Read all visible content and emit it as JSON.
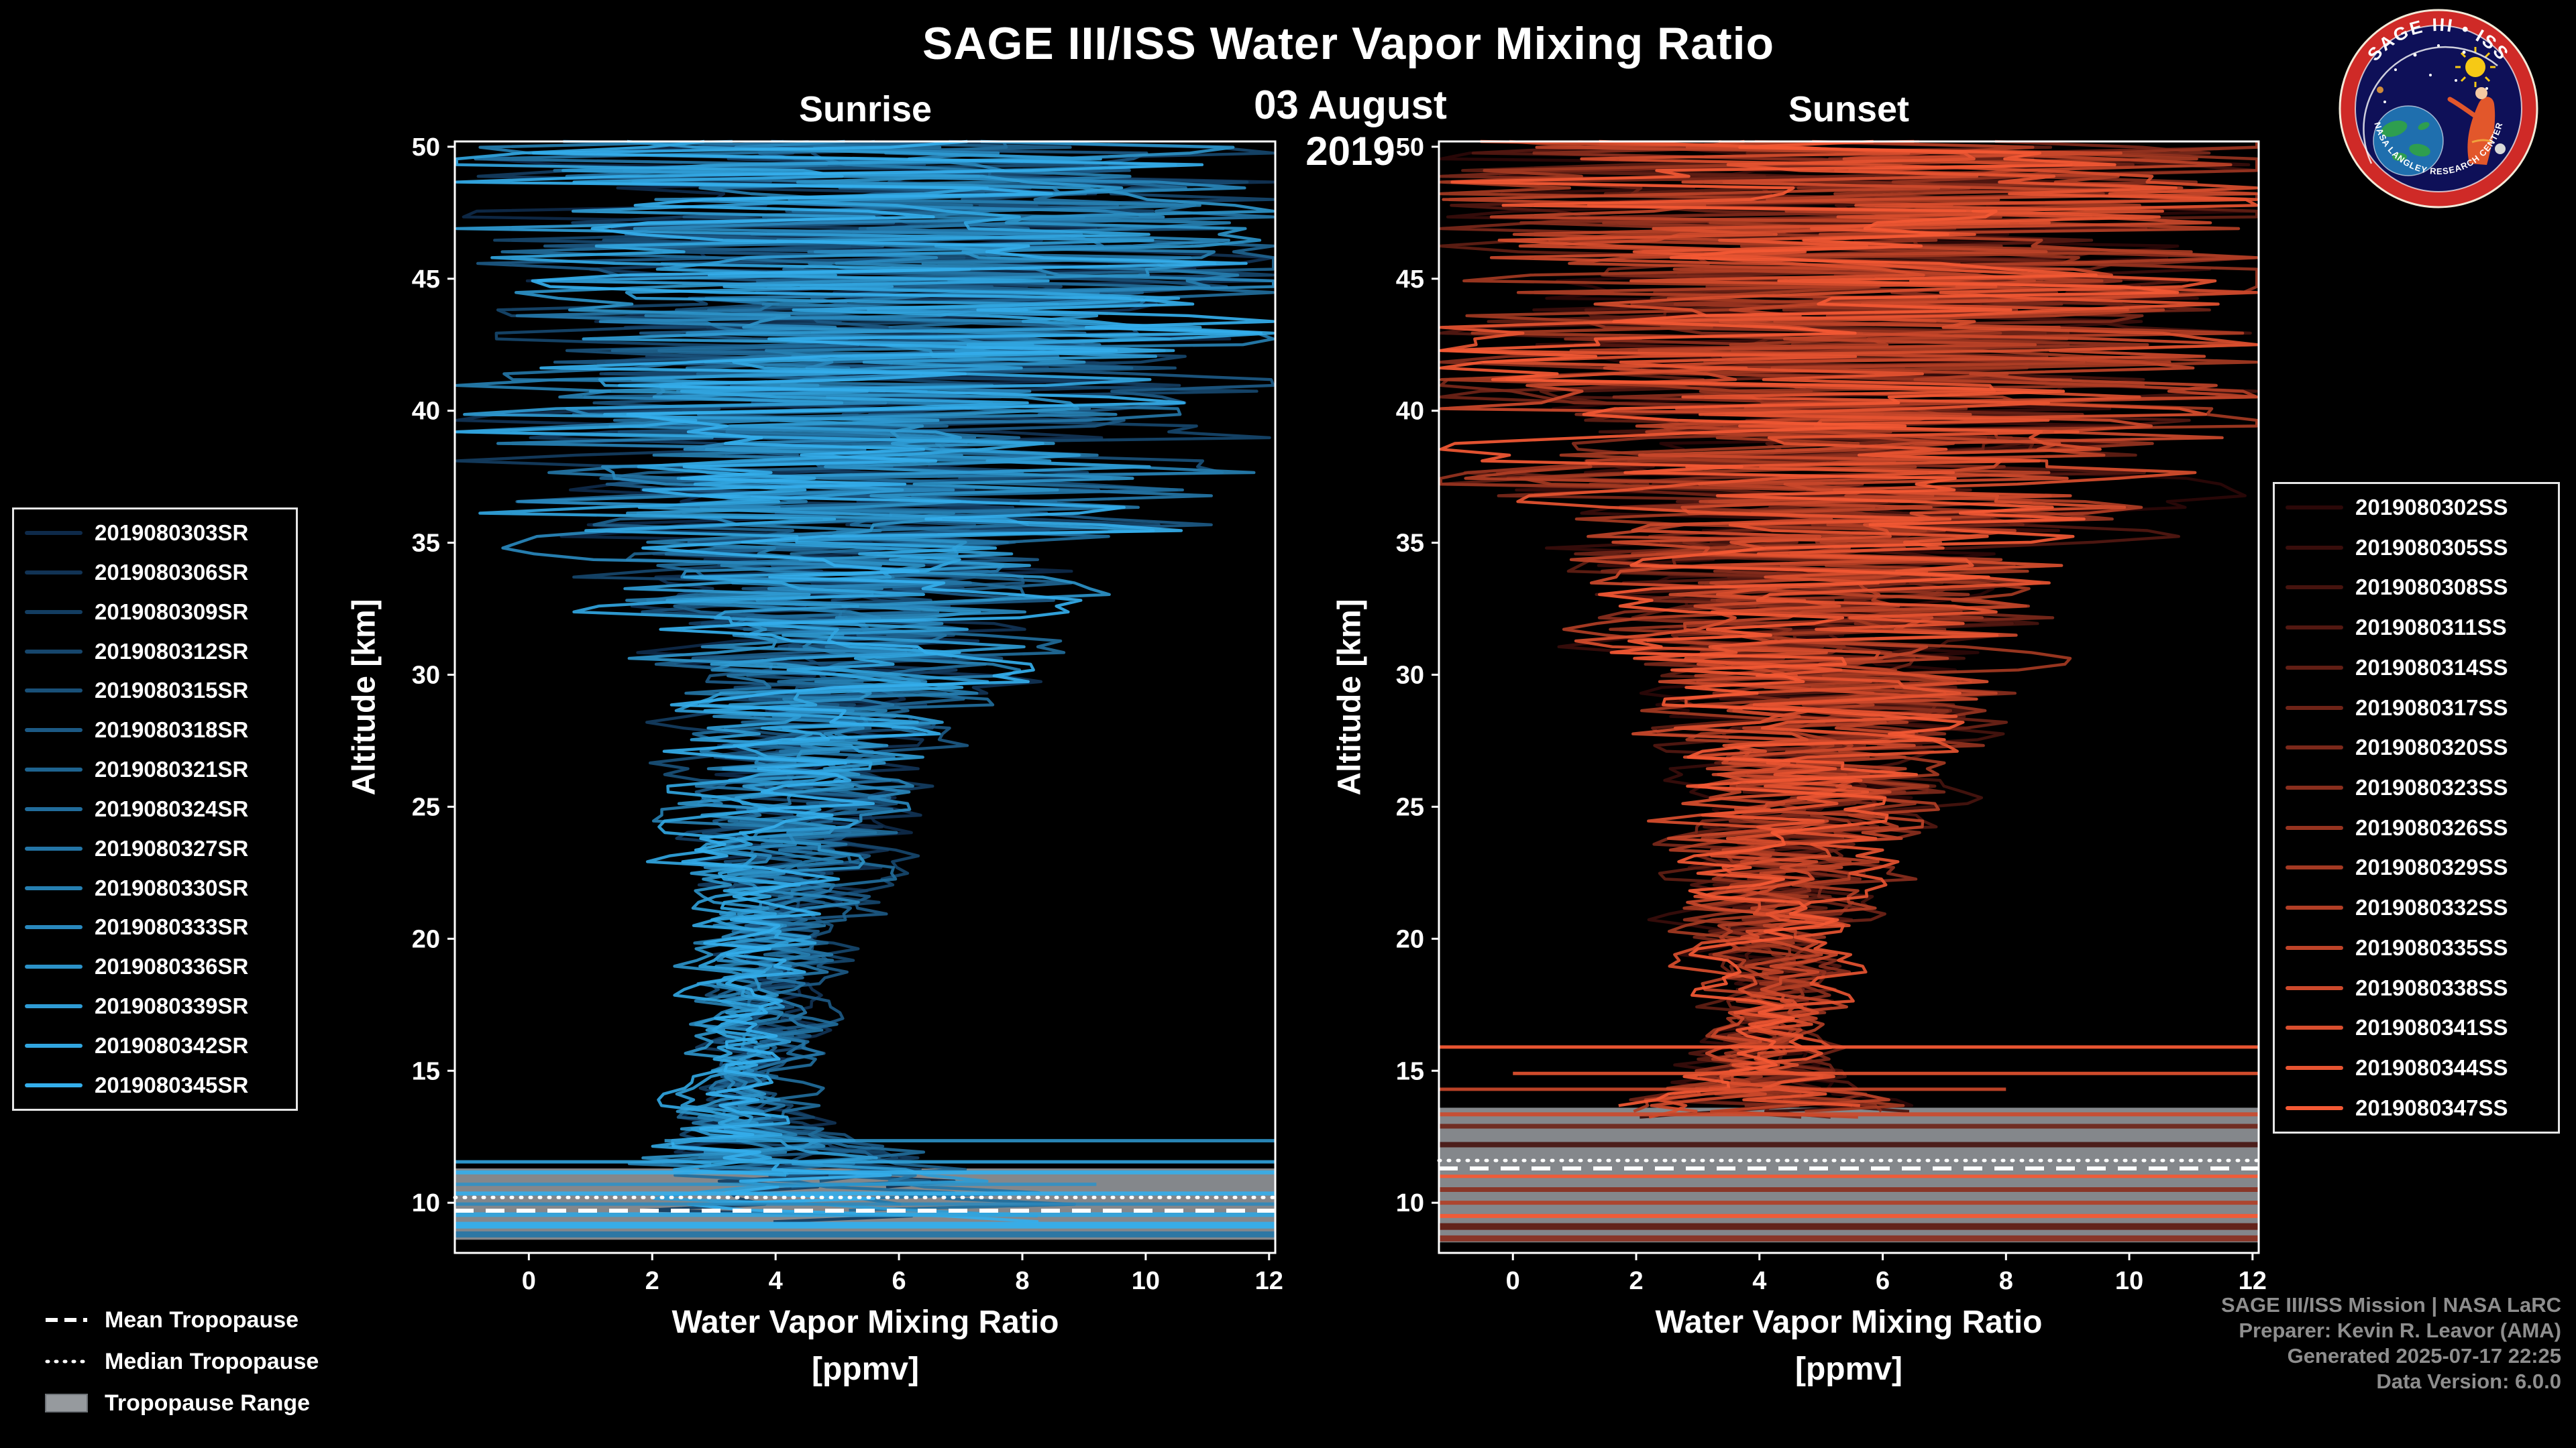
{
  "header": {
    "title": "SAGE III/ISS Water Vapor Mixing Ratio",
    "date": "03 August 2019"
  },
  "logo": {
    "top_text": "SAGE III • ISS",
    "bottom_text": "NASA LANGLEY RESEARCH CENTER"
  },
  "tropopause_legend": {
    "mean_label": "Mean Tropopause",
    "median_label": "Median Tropopause",
    "range_label": "Tropopause Range"
  },
  "credits": [
    "SAGE III/ISS Mission | NASA LaRC",
    "Preparer: Kevin R. Leavor (AMA)",
    "Generated 2025-07-17 22:25",
    "Data Version: 6.0.0"
  ],
  "colors": {
    "background": "#000000",
    "text": "#ffffff",
    "credits_text": "#8e8e8e",
    "tropopause_band": "#969a9e",
    "sunrise_color_range": [
      "#0e2a4a",
      "#34aeeb"
    ],
    "sunset_color_range": [
      "#2b0808",
      "#f45934"
    ]
  },
  "chart_data": [
    {
      "type": "line",
      "panel": "sunrise",
      "title": "Sunrise",
      "xlabel": "Water Vapor Mixing Ratio",
      "xlabel_units": "[ppmv]",
      "ylabel": "Altitude [km]",
      "xlim": [
        -1.2,
        12.1
      ],
      "ylim": [
        8.1,
        50.2
      ],
      "xticks": [
        0,
        2,
        4,
        6,
        8,
        10,
        12
      ],
      "yticks": [
        10,
        15,
        20,
        25,
        30,
        35,
        40,
        45,
        50
      ],
      "grid": false,
      "legend_position": "outside-left",
      "series": [
        {
          "name": "2019080303SR",
          "color": "#0e2a4a",
          "seed": 311
        },
        {
          "name": "2019080306SR",
          "color": "#113355",
          "seed": 322
        },
        {
          "name": "2019080309SR",
          "color": "#133d61",
          "seed": 333
        },
        {
          "name": "2019080312SR",
          "color": "#16466c",
          "seed": 344
        },
        {
          "name": "2019080315SR",
          "color": "#195078",
          "seed": 355
        },
        {
          "name": "2019080318SR",
          "color": "#1c5984",
          "seed": 366
        },
        {
          "name": "2019080321SR",
          "color": "#1e638f",
          "seed": 377
        },
        {
          "name": "2019080324SR",
          "color": "#216c9b",
          "seed": 388
        },
        {
          "name": "2019080327SR",
          "color": "#2475a6",
          "seed": 399
        },
        {
          "name": "2019080330SR",
          "color": "#267fb1",
          "seed": 410
        },
        {
          "name": "2019080333SR",
          "color": "#2988bd",
          "seed": 421
        },
        {
          "name": "2019080336SR",
          "color": "#2c92c8",
          "seed": 432
        },
        {
          "name": "2019080339SR",
          "color": "#2f9bd4",
          "seed": 443
        },
        {
          "name": "2019080342SR",
          "color": "#31a5df",
          "seed": 454
        },
        {
          "name": "2019080345SR",
          "color": "#34aeeb",
          "seed": 465
        }
      ],
      "profile_envelope": {
        "altitude_km": [
          50.2,
          46,
          42,
          38,
          34,
          30,
          26,
          22,
          19,
          17,
          15,
          13.5,
          12.5,
          11.5,
          10.5,
          9.5,
          8.1
        ],
        "center_ppmv": [
          5.8,
          5.7,
          5.6,
          5.4,
          5.1,
          4.9,
          4.6,
          4.2,
          4.0,
          3.8,
          3.7,
          3.6,
          3.9,
          4.3,
          4.7,
          5.0,
          5.0
        ],
        "spread_ppmv": [
          6.8,
          6.6,
          6.1,
          5.4,
          3.8,
          2.7,
          1.9,
          1.3,
          1.0,
          0.8,
          0.7,
          0.9,
          1.6,
          2.4,
          3.0,
          3.6,
          4.0
        ]
      },
      "bottom_cut_km": [
        9.0,
        11.5
      ],
      "tropopause": {
        "mean_km": 9.7,
        "median_km": 10.2,
        "range_km": [
          8.6,
          11.3
        ],
        "band_color": "#969a9e"
      },
      "horizontal_features": [
        {
          "alt_km": 12.35,
          "x0": 2.2,
          "x1": 12.1,
          "color": "#2f9bd4",
          "width": 5,
          "opacity": 0.85
        },
        {
          "alt_km": 11.55,
          "x0": -1.2,
          "x1": 12.1,
          "color": "#31a5df",
          "width": 5,
          "opacity": 0.9
        },
        {
          "alt_km": 11.15,
          "x0": -1.2,
          "x1": 12.1,
          "color": "#34aeeb",
          "width": 6,
          "opacity": 0.9
        },
        {
          "alt_km": 10.7,
          "x0": -1.2,
          "x1": 9.2,
          "color": "#2c92c8",
          "width": 5,
          "opacity": 0.85
        },
        {
          "alt_km": 10.35,
          "x0": -1.2,
          "x1": 12.1,
          "color": "#34aeeb",
          "width": 6,
          "opacity": 0.9
        },
        {
          "alt_km": 9.95,
          "x0": -1.2,
          "x1": 12.1,
          "color": "#2988bd",
          "width": 5,
          "opacity": 0.85
        },
        {
          "alt_km": 9.55,
          "x0": -1.2,
          "x1": 12.1,
          "color": "#31a5df",
          "width": 7,
          "opacity": 0.9
        },
        {
          "alt_km": 9.15,
          "x0": -1.2,
          "x1": 12.1,
          "color": "#34aeeb",
          "width": 10,
          "opacity": 0.95
        },
        {
          "alt_km": 8.8,
          "x0": -1.2,
          "x1": 12.1,
          "color": "#2475a6",
          "width": 9,
          "opacity": 0.9
        }
      ]
    },
    {
      "type": "line",
      "panel": "sunset",
      "title": "Sunset",
      "xlabel": "Water Vapor Mixing Ratio",
      "xlabel_units": "[ppmv]",
      "ylabel": "Altitude [km]",
      "xlim": [
        -1.2,
        12.1
      ],
      "ylim": [
        8.1,
        50.2
      ],
      "xticks": [
        0,
        2,
        4,
        6,
        8,
        10,
        12
      ],
      "yticks": [
        10,
        15,
        20,
        25,
        30,
        35,
        40,
        45,
        50
      ],
      "grid": false,
      "legend_position": "outside-right",
      "series": [
        {
          "name": "2019080302SS",
          "color": "#2b0808",
          "seed": 511
        },
        {
          "name": "2019080305SS",
          "color": "#380d0b",
          "seed": 523
        },
        {
          "name": "2019080308SS",
          "color": "#46130e",
          "seed": 535
        },
        {
          "name": "2019080311SS",
          "color": "#531811",
          "seed": 547
        },
        {
          "name": "2019080314SS",
          "color": "#611e14",
          "seed": 559
        },
        {
          "name": "2019080317SS",
          "color": "#6e2317",
          "seed": 571
        },
        {
          "name": "2019080320SS",
          "color": "#7b281a",
          "seed": 583
        },
        {
          "name": "2019080323SS",
          "color": "#892e1d",
          "seed": 595
        },
        {
          "name": "2019080326SS",
          "color": "#96331f",
          "seed": 607
        },
        {
          "name": "2019080329SS",
          "color": "#a43922",
          "seed": 619
        },
        {
          "name": "2019080332SS",
          "color": "#b13e25",
          "seed": 631
        },
        {
          "name": "2019080335SS",
          "color": "#be4328",
          "seed": 643
        },
        {
          "name": "2019080338SS",
          "color": "#cc492b",
          "seed": 655
        },
        {
          "name": "2019080341SS",
          "color": "#d94e2e",
          "seed": 667
        },
        {
          "name": "2019080344SS",
          "color": "#e75431",
          "seed": 679
        },
        {
          "name": "2019080347SS",
          "color": "#f45934",
          "seed": 691
        }
      ],
      "profile_envelope": {
        "altitude_km": [
          50.2,
          46,
          42,
          38,
          34,
          30,
          26,
          22,
          19,
          17,
          15.5,
          14.5,
          12.9
        ],
        "center_ppmv": [
          5.6,
          5.5,
          5.6,
          5.5,
          5.3,
          5.1,
          4.8,
          4.4,
          4.2,
          4.1,
          4.0,
          4.1,
          4.3
        ],
        "spread_ppmv": [
          6.8,
          6.6,
          6.0,
          5.1,
          3.9,
          2.9,
          2.1,
          1.4,
          1.1,
          0.9,
          1.0,
          1.4,
          2.4
        ]
      },
      "bottom_cut_km": [
        12.9,
        13.8
      ],
      "tropopause": {
        "mean_km": 11.3,
        "median_km": 11.6,
        "range_km": [
          8.5,
          13.6
        ],
        "band_color": "#969a9e"
      },
      "horizontal_features": [
        {
          "alt_km": 15.9,
          "x0": -1.2,
          "x1": 12.1,
          "color": "#f45934",
          "width": 5,
          "opacity": 0.95
        },
        {
          "alt_km": 14.9,
          "x0": 0.0,
          "x1": 12.1,
          "color": "#e75431",
          "width": 5,
          "opacity": 0.9
        },
        {
          "alt_km": 14.3,
          "x0": -1.2,
          "x1": 8.0,
          "color": "#d94e2e",
          "width": 5,
          "opacity": 0.85
        },
        {
          "alt_km": 13.35,
          "x0": -1.2,
          "x1": 12.1,
          "color": "#cc492b",
          "width": 6,
          "opacity": 0.9
        },
        {
          "alt_km": 12.9,
          "x0": -1.2,
          "x1": 12.1,
          "color": "#6e2317",
          "width": 7,
          "opacity": 0.9
        },
        {
          "alt_km": 12.2,
          "x0": -1.2,
          "x1": 12.1,
          "color": "#46130e",
          "width": 8,
          "opacity": 0.9
        },
        {
          "alt_km": 11.0,
          "x0": -1.2,
          "x1": 12.1,
          "color": "#f45934",
          "width": 5,
          "opacity": 0.95
        },
        {
          "alt_km": 10.5,
          "x0": -1.2,
          "x1": 12.1,
          "color": "#892e1d",
          "width": 7,
          "opacity": 0.9
        },
        {
          "alt_km": 10.0,
          "x0": -1.2,
          "x1": 12.1,
          "color": "#b13e25",
          "width": 6,
          "opacity": 0.9
        },
        {
          "alt_km": 9.5,
          "x0": -1.2,
          "x1": 12.1,
          "color": "#f45934",
          "width": 6,
          "opacity": 0.95
        },
        {
          "alt_km": 9.1,
          "x0": -1.2,
          "x1": 12.1,
          "color": "#611e14",
          "width": 10,
          "opacity": 0.95
        },
        {
          "alt_km": 8.65,
          "x0": -1.2,
          "x1": 12.1,
          "color": "#892e1d",
          "width": 9,
          "opacity": 0.9
        }
      ]
    }
  ]
}
